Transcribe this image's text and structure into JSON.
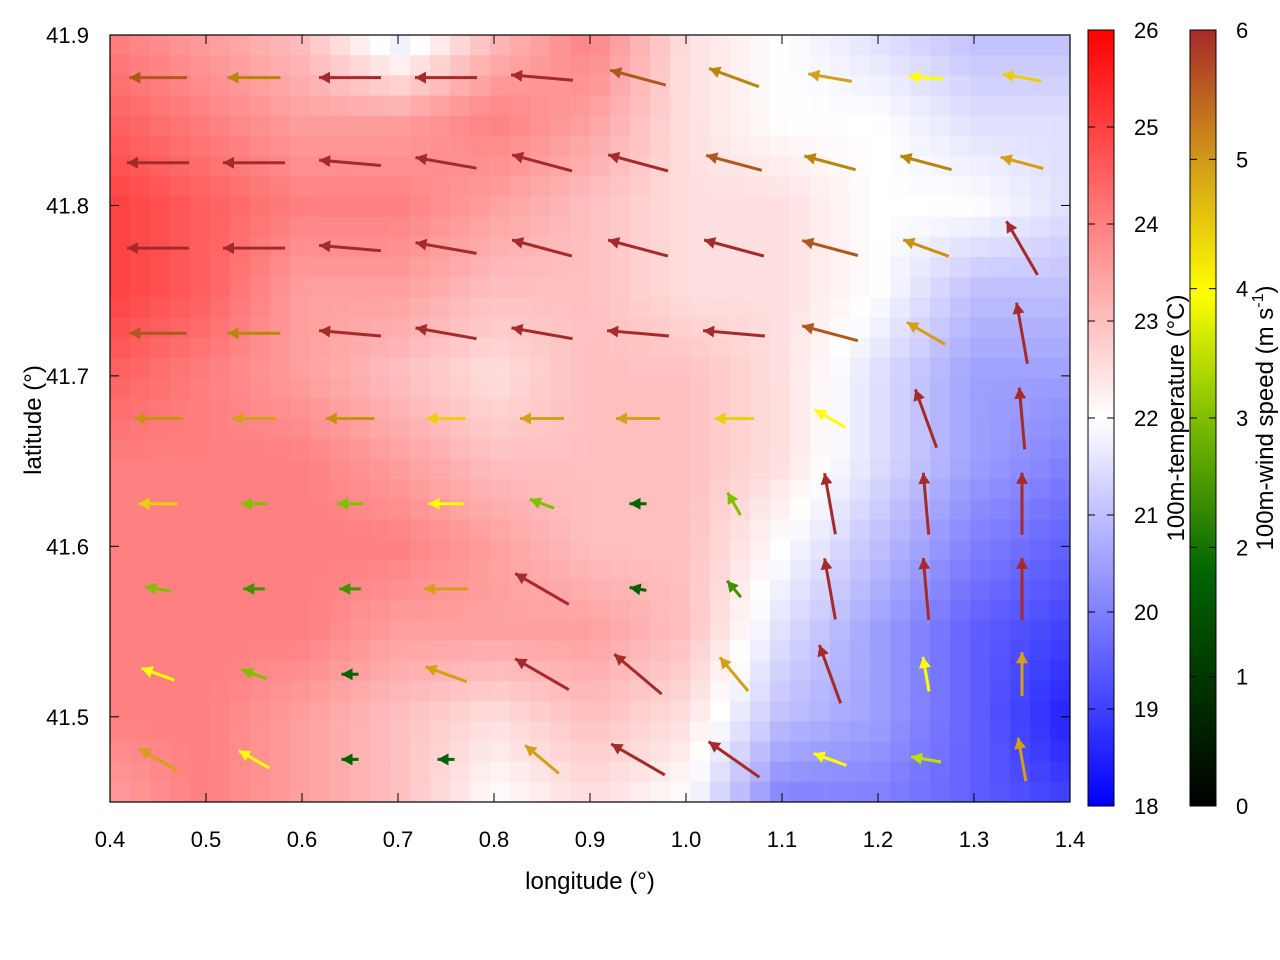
{
  "chart_data": {
    "type": "heatmap",
    "title": "",
    "xlabel": "longitude (°)",
    "ylabel": "latitude (°)",
    "xlim": [
      0.4,
      1.4
    ],
    "ylim": [
      41.45,
      41.9
    ],
    "x_ticks": [
      0.4,
      0.5,
      0.6,
      0.7,
      0.8,
      0.9,
      1.0,
      1.1,
      1.2,
      1.3,
      1.4
    ],
    "y_ticks": [
      41.5,
      41.6,
      41.7,
      41.8,
      41.9
    ],
    "grid": false,
    "temperature_colorbar": {
      "label": "100m-temperature (°C)",
      "range": [
        18,
        26
      ],
      "ticks": [
        18,
        19,
        20,
        21,
        22,
        23,
        24,
        25,
        26
      ],
      "colors": [
        "#0000ff",
        "#ffffff",
        "#ff0000"
      ]
    },
    "wind_colorbar": {
      "label": "100m-wind speed (m s",
      "label_superscript": "-1",
      "label_close": ")",
      "range": [
        0,
        6
      ],
      "ticks": [
        0,
        1,
        2,
        3,
        4,
        5,
        6
      ],
      "colors": [
        "#000000",
        "#006400",
        "#7fbf00",
        "#ffff00",
        "#d4a017",
        "#b8860b",
        "#a52a2a"
      ]
    },
    "temperature_field": {
      "lon": [
        0.4,
        0.5,
        0.6,
        0.7,
        0.8,
        0.9,
        1.0,
        1.1,
        1.2,
        1.3,
        1.4
      ],
      "lat": [
        41.9,
        41.85,
        41.8,
        41.75,
        41.7,
        41.65,
        41.6,
        41.55,
        41.5,
        41.45
      ],
      "values": [
        [
          24.0,
          23.5,
          23.0,
          21.5,
          23.0,
          24.0,
          22.5,
          22.0,
          21.5,
          21.0,
          21.0
        ],
        [
          24.5,
          24.0,
          23.5,
          23.5,
          24.0,
          23.5,
          22.5,
          22.0,
          22.0,
          21.5,
          21.5
        ],
        [
          25.0,
          24.5,
          24.0,
          24.0,
          23.5,
          23.0,
          22.5,
          22.5,
          22.0,
          22.0,
          21.5
        ],
        [
          25.0,
          24.5,
          23.5,
          23.5,
          23.0,
          23.0,
          22.5,
          22.5,
          22.0,
          21.0,
          21.0
        ],
        [
          24.5,
          24.0,
          23.5,
          23.0,
          22.5,
          23.0,
          23.0,
          22.5,
          21.5,
          20.5,
          20.5
        ],
        [
          24.0,
          24.0,
          24.0,
          23.5,
          23.0,
          23.0,
          23.0,
          22.5,
          21.5,
          20.5,
          20.0
        ],
        [
          24.0,
          24.0,
          24.0,
          24.0,
          23.5,
          23.0,
          23.0,
          22.0,
          21.0,
          20.0,
          19.5
        ],
        [
          24.0,
          24.0,
          24.0,
          23.5,
          23.5,
          23.5,
          23.0,
          21.5,
          20.5,
          19.5,
          19.0
        ],
        [
          24.0,
          24.0,
          23.5,
          23.0,
          22.5,
          23.0,
          22.5,
          21.0,
          20.5,
          19.5,
          18.5
        ],
        [
          23.5,
          24.0,
          23.5,
          23.0,
          22.0,
          22.5,
          22.0,
          20.0,
          20.0,
          19.5,
          19.0
        ]
      ]
    },
    "wind_field": {
      "lon": [
        0.45,
        0.55,
        0.65,
        0.75,
        0.85,
        0.95,
        1.05,
        1.15,
        1.25,
        1.35
      ],
      "lat": [
        41.875,
        41.825,
        41.775,
        41.725,
        41.675,
        41.625,
        41.575,
        41.525,
        41.475
      ],
      "speed": [
        [
          5.5,
          5.0,
          6.0,
          6.0,
          6.0,
          5.5,
          5.0,
          4.0,
          3.0,
          3.5
        ],
        [
          6.0,
          6.0,
          6.0,
          6.0,
          6.0,
          6.0,
          5.5,
          5.0,
          5.0,
          4.0
        ],
        [
          6.0,
          6.0,
          6.0,
          6.0,
          6.0,
          6.0,
          6.0,
          5.5,
          4.5,
          6.0
        ],
        [
          5.5,
          5.0,
          6.0,
          6.0,
          6.0,
          6.0,
          6.0,
          5.5,
          4.0,
          6.0
        ],
        [
          4.5,
          4.0,
          4.5,
          3.5,
          4.0,
          4.0,
          3.5,
          3.0,
          6.0,
          6.0
        ],
        [
          3.5,
          2.0,
          2.0,
          3.0,
          2.0,
          1.0,
          2.0,
          6.0,
          6.0,
          6.0
        ],
        [
          2.0,
          1.5,
          1.5,
          4.0,
          6.0,
          1.0,
          1.5,
          6.0,
          6.0,
          6.0
        ],
        [
          3.0,
          2.0,
          1.0,
          4.0,
          6.0,
          6.0,
          4.0,
          6.0,
          3.0,
          4.0
        ],
        [
          4.0,
          3.0,
          1.0,
          1.0,
          4.0,
          6.0,
          6.0,
          3.0,
          2.5,
          4.0
        ]
      ],
      "direction_deg": [
        [
          180,
          180,
          180,
          180,
          175,
          165,
          160,
          170,
          175,
          170
        ],
        [
          180,
          180,
          175,
          170,
          165,
          165,
          165,
          165,
          165,
          165
        ],
        [
          180,
          180,
          175,
          170,
          165,
          165,
          165,
          165,
          160,
          120
        ],
        [
          180,
          180,
          175,
          170,
          170,
          175,
          175,
          165,
          150,
          100
        ],
        [
          180,
          180,
          180,
          180,
          180,
          180,
          180,
          150,
          110,
          95
        ],
        [
          180,
          180,
          180,
          180,
          160,
          180,
          120,
          100,
          95,
          90
        ],
        [
          170,
          180,
          180,
          180,
          150,
          170,
          130,
          100,
          95,
          90
        ],
        [
          160,
          160,
          180,
          160,
          150,
          140,
          130,
          110,
          100,
          90
        ],
        [
          150,
          150,
          180,
          180,
          140,
          150,
          145,
          160,
          170,
          100
        ]
      ]
    }
  }
}
